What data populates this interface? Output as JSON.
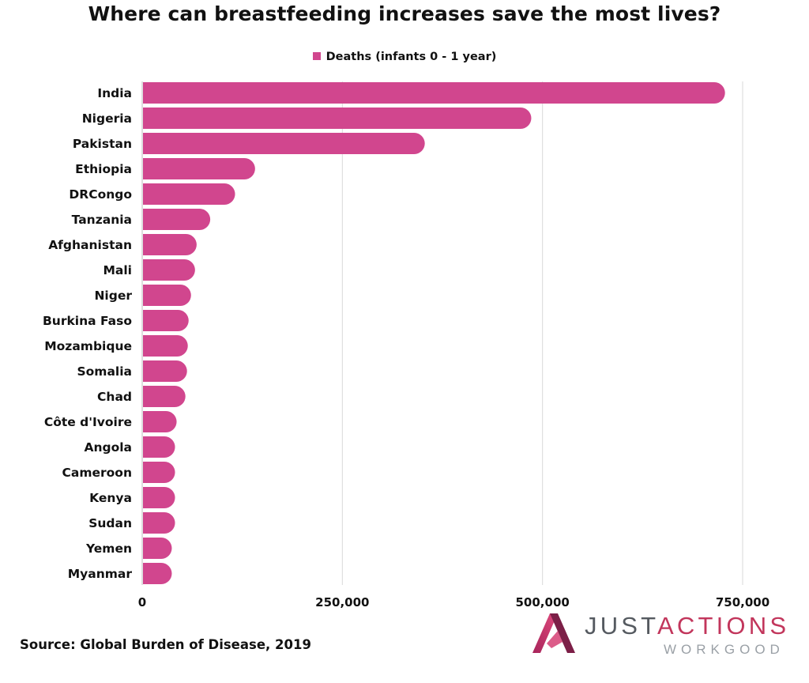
{
  "chart_data": {
    "type": "bar",
    "orientation": "horizontal",
    "title": "Where can breastfeeding increases save the most lives?",
    "categories": [
      "India",
      "Nigeria",
      "Pakistan",
      "Ethiopia",
      "DRCongo",
      "Tanzania",
      "Afghanistan",
      "Mali",
      "Niger",
      "Burkina Faso",
      "Mozambique",
      "Somalia",
      "Chad",
      "Côte d'Ivoire",
      "Angola",
      "Cameroon",
      "Kenya",
      "Sudan",
      "Yemen",
      "Myanmar"
    ],
    "series": [
      {
        "name": "Deaths (infants 0 - 1 year)",
        "color": "#d1468e",
        "values": [
          727000,
          485000,
          352000,
          140000,
          115000,
          84000,
          67000,
          65000,
          60000,
          57000,
          56000,
          55000,
          53000,
          42000,
          40000,
          40000,
          40000,
          40000,
          36000,
          36000
        ]
      }
    ],
    "xlim": [
      0,
      750000
    ],
    "xticks": [
      "0",
      "250,000",
      "500,000",
      "750,000"
    ],
    "xtick_values": [
      0,
      250000,
      500000,
      750000
    ],
    "xlabel": "",
    "ylabel": "",
    "grid": true,
    "gridline_color": "#d9d9d9",
    "legend_position": "top-center"
  },
  "source": "Source: Global Burden of Disease, 2019",
  "logo": {
    "line1_a": "JUST",
    "line1_b": "ACTIONS",
    "line2": "WORKGOOD",
    "colors": {
      "gray": "#555a60",
      "accent": "#c2365c"
    }
  }
}
